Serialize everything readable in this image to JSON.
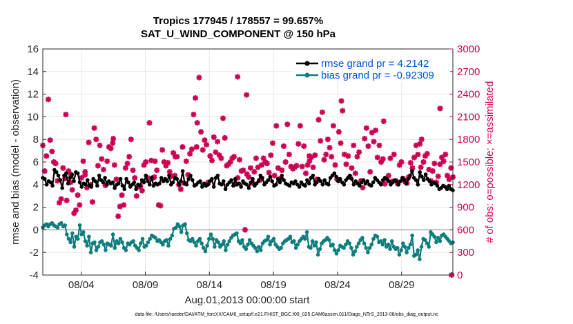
{
  "chart_data": {
    "type": "line",
    "title": "Tropics 177945 / 178557 = 99.657%",
    "subtitle": "SAT_U_WIND_COMPONENT @ 150 hPa",
    "xlabel": "Aug.01,2013 00:00:00 start",
    "ylabel": "rmse and bias (model - observation)",
    "y2label": "# of obs: o=possible; ×=assimilated",
    "footnote": "data file: /Users/raeder/DAI/ATM_forcXX/CAM6_setup/f.e21.FHIST_BGC.f09_025.CAM6assim.011/Diags_NTrS_2013-08/obs_diag_output.nc",
    "xlim": [
      1,
      33
    ],
    "ylim": [
      -4,
      16
    ],
    "y2lim": [
      0,
      3000
    ],
    "x_ticks": [
      {
        "x": 4,
        "label": "08/04"
      },
      {
        "x": 9,
        "label": "08/09"
      },
      {
        "x": 14,
        "label": "08/14"
      },
      {
        "x": 19,
        "label": "08/19"
      },
      {
        "x": 24,
        "label": "08/24"
      },
      {
        "x": 29,
        "label": "08/29"
      }
    ],
    "y_ticks": [
      -4,
      -2,
      0,
      2,
      4,
      6,
      8,
      10,
      12,
      14,
      16
    ],
    "y_tick_labels": [
      "-4",
      "-2",
      "0",
      "2",
      "4",
      "6",
      "8",
      "10",
      "12",
      "14",
      "16"
    ],
    "y2_ticks": [
      0,
      300,
      600,
      900,
      1200,
      1500,
      1800,
      2100,
      2400,
      2700,
      3000
    ],
    "y2_tick_labels": [
      "0",
      "300",
      "600",
      "900",
      "1200",
      "1500",
      "1800",
      "2100",
      "2400",
      "2700",
      "3000"
    ],
    "colors": {
      "rmse": "#000000",
      "bias": "#0d7d7d",
      "obs": "#cc0052",
      "legend_text": "#0055dd",
      "grid": "#e6e6e6",
      "zero_line": "#aaaaaa"
    },
    "series": [
      {
        "name": "rmse grand pr = 4.2142",
        "values": [
          4.6,
          4.5,
          4.0,
          4.3,
          4.2,
          3.9,
          5.3,
          5.1,
          4.8,
          4.4,
          3.7,
          4.8,
          5.0,
          4.1,
          4.6,
          4.9,
          4.3,
          5.1,
          5.0,
          4.2,
          3.8,
          4.1,
          4.0,
          4.4,
          3.9,
          3.8,
          4.5,
          4.3,
          3.9,
          4.8,
          4.4,
          4.2,
          4.6,
          4.0,
          4.3,
          4.1,
          4.2,
          3.7,
          4.0,
          4.1,
          4.5,
          3.9,
          3.6,
          4.5,
          4.2,
          3.8,
          4.0,
          4.2,
          3.6,
          4.0,
          3.9,
          4.4,
          4.2,
          4.8,
          4.3,
          4.0,
          4.6,
          3.9,
          4.1,
          4.0,
          4.1,
          4.6,
          4.3,
          4.5,
          4.3,
          4.8,
          4.0,
          4.2,
          4.6,
          4.5,
          4.0,
          4.3,
          5.2,
          4.1,
          4.0,
          4.5,
          4.8,
          4.4,
          3.9,
          4.0,
          4.2,
          4.3,
          3.8,
          4.1,
          3.9,
          4.0,
          4.3,
          4.5,
          3.8,
          4.6,
          4.8,
          4.1,
          4.0,
          4.3,
          3.6,
          4.0,
          4.2,
          4.4,
          3.9,
          4.5,
          4.0,
          4.1,
          3.8,
          4.3,
          4.1,
          4.0,
          3.7,
          4.2,
          4.5,
          3.9,
          4.1,
          4.3,
          4.8,
          4.6,
          4.0,
          4.2,
          4.4,
          4.7,
          4.3,
          3.9,
          4.0,
          4.5,
          4.2,
          4.8,
          4.4,
          4.1,
          4.0,
          3.9,
          4.2,
          4.1,
          4.3,
          4.0,
          3.8,
          4.2,
          4.0,
          3.9,
          4.4,
          4.1,
          4.6,
          4.8,
          4.0,
          4.2,
          4.5,
          4.3,
          4.0,
          4.4,
          4.1,
          4.0,
          4.6,
          4.8,
          5.0,
          4.7,
          4.3,
          4.5,
          4.2,
          4.0,
          4.4,
          4.6,
          4.8,
          4.5,
          4.0,
          4.3,
          4.1,
          3.9,
          4.2,
          4.4,
          4.1,
          4.3,
          4.0,
          3.9,
          4.2,
          4.6,
          4.4,
          4.2,
          4.0,
          4.4,
          4.6,
          4.5,
          4.3,
          4.0,
          4.2,
          4.4,
          4.3,
          4.0,
          4.3,
          4.6,
          4.4,
          4.1,
          4.5,
          4.8,
          5.2,
          4.6,
          4.4,
          4.0,
          5.1,
          4.7,
          4.4,
          4.9,
          4.5,
          4.3,
          4.0,
          4.2,
          4.1,
          3.9,
          3.6,
          3.7,
          3.9,
          3.8,
          3.6,
          3.9,
          3.6,
          3.5
        ]
      },
      {
        "name": "bias grand pr = -0.92309",
        "values": [
          0.2,
          0.4,
          0.5,
          0.3,
          0.5,
          0.6,
          0.4,
          0.3,
          0.2,
          0.5,
          0.6,
          0.3,
          0.4,
          -0.4,
          -0.8,
          -1.1,
          -0.3,
          -1.5,
          -0.6,
          -0.8,
          0.4,
          -0.4,
          -0.2,
          -1.0,
          -1.4,
          -0.6,
          -2.0,
          -1.2,
          -1.1,
          -1.8,
          -1.5,
          -1.1,
          -1.0,
          -1.3,
          -1.8,
          -1.2,
          -1.3,
          -1.4,
          -0.4,
          -1.6,
          -1.0,
          -1.2,
          -0.8,
          -1.1,
          -1.6,
          -1.8,
          -1.2,
          -1.3,
          -1.1,
          -1.0,
          -1.4,
          -1.6,
          -1.8,
          -1.2,
          -0.8,
          -1.5,
          -1.4,
          -1.1,
          -0.8,
          -0.5,
          -0.6,
          -0.7,
          -1.0,
          -0.9,
          -1.1,
          -1.3,
          -1.0,
          -0.9,
          -1.4,
          -0.8,
          -0.5,
          0.1,
          0.2,
          0.5,
          0.3,
          -0.2,
          0.4,
          0.5,
          -0.3,
          -0.9,
          -1.0,
          -0.8,
          -1.1,
          -1.4,
          -1.0,
          -0.8,
          -1.2,
          -1.6,
          -1.9,
          -1.4,
          -0.8,
          -0.4,
          -0.8,
          -1.5,
          -0.9,
          -1.1,
          -1.5,
          -1.3,
          -1.0,
          -1.8,
          -1.3,
          -1.0,
          -0.7,
          -0.5,
          -0.4,
          -0.3,
          -1.0,
          -1.2,
          -0.9,
          -1.5,
          -1.7,
          -1.3,
          -0.9,
          -1.2,
          -1.4,
          -1.6,
          -1.9,
          -1.5,
          -1.8,
          -1.2,
          -1.0,
          -0.9,
          -0.6,
          -1.3,
          -1.0,
          -0.8,
          -1.3,
          -1.5,
          -1.7,
          -1.6,
          -1.2,
          -1.0,
          -0.9,
          -0.8,
          -0.6,
          -1.1,
          -1.0,
          -1.6,
          -1.3,
          -1.0,
          -0.8,
          -0.6,
          -0.8,
          -0.2,
          -1.5,
          -1.6,
          -1.0,
          -1.4,
          -1.1,
          -2.2,
          -1.7,
          -1.2,
          -1.0,
          -0.9,
          -0.7,
          -0.9,
          -1.4,
          -1.3,
          -1.8,
          -2.1,
          -1.8,
          -1.4,
          -1.5,
          -1.6,
          -1.3,
          -1.0,
          -1.2,
          -1.6,
          -2.2,
          -1.9,
          -1.5,
          -1.2,
          -0.9,
          -0.7,
          -1.2,
          -1.6,
          -2.0,
          -1.6,
          -1.3,
          -0.8,
          -0.5,
          -0.6,
          -1.1,
          -1.0,
          -1.3,
          -0.9,
          -1.5,
          -1.3,
          -1.7,
          -1.0,
          -1.5,
          -1.7,
          -1.6,
          -2.2,
          -1.8,
          -1.2,
          -1.5,
          -2.0,
          -1.6,
          -1.3,
          -0.5,
          -2.3,
          -2.2,
          -1.8,
          -2.6,
          -1.5,
          -0.8,
          -0.9,
          -1.2,
          -1.5,
          -0.2,
          -0.4,
          -0.6,
          -1.1,
          -0.7,
          -1.0,
          -0.5,
          -0.4,
          -0.6,
          -0.8,
          -1.0,
          -1.2,
          -1.1
        ]
      }
    ],
    "obs_series": {
      "name": "# of obs (assimilated)",
      "axis": "right",
      "values": [
        1720,
        1380,
        1580,
        2330,
        1790,
        1640,
        1500,
        1480,
        1250,
        960,
        1010,
        1420,
        1280,
        990,
        1380,
        1230,
        1130,
        820,
        860,
        1060,
        930,
        1290,
        1510,
        1330,
        1160,
        1760,
        1200,
        970,
        1950,
        1800,
        1450,
        1720,
        1540,
        1400,
        1190,
        1510,
        1700,
        1680,
        1750,
        1460,
        1270,
        780,
        910,
        1060,
        930,
        1420,
        1480,
        1570,
        1800,
        1390,
        1290,
        1050,
        1170,
        1180,
        1120,
        1460,
        1500,
        1290,
        2020,
        1520,
        1290,
        1510,
        1390,
        930,
        920,
        1660,
        1500,
        1450,
        1490,
        1370,
        1310,
        1620,
        1570,
        1570,
        1200,
        1140,
        1700,
        1220,
        1510,
        1330,
        1610,
        1670,
        2130,
        2350,
        2020,
        2620,
        1900,
        1660,
        1790,
        1730,
        1230,
        1580,
        1520,
        1830,
        1630,
        1770,
        1590,
        1550,
        2080,
        1820,
        1450,
        1470,
        1500,
        1550,
        1570,
        1210,
        1290,
        1530,
        1380,
        1390,
        600,
        1340,
        1300,
        1420,
        1220,
        1370,
        1550,
        1430,
        1260,
        1460,
        1550,
        1500,
        1480,
        1360,
        1590,
        1750,
        1320,
        1980,
        1420,
        1280,
        1390,
        1710,
        1500,
        2000,
        1600,
        1440,
        1410,
        1430,
        1450,
        1740,
        1980,
        1440,
        1710,
        1350,
        1460,
        1510,
        1560,
        1430,
        1590,
        1270,
        2060,
        1780,
        2160,
        1530,
        1600,
        1800,
        1690,
        1570,
        1980,
        1460,
        1270,
        1900,
        1750,
        2180,
        1600,
        1470,
        1580,
        1300,
        1420,
        1720,
        1350,
        1570,
        1630,
        1250,
        1160,
        1810,
        1950,
        1710,
        1370,
        1890,
        1770,
        1920,
        1560,
        1720,
        1500,
        1540,
        1210,
        1280,
        1320,
        1550,
        1240,
        1600,
        1250,
        1210,
        1460,
        1500,
        1280,
        1240,
        1220,
        1300,
        1490,
        1420,
        1560,
        1720,
        1600,
        1740,
        1800,
        1500,
        1580,
        1610,
        1400,
        1250,
        1380,
        1480,
        1230,
        1310,
        1470,
        1560,
        1510,
        1600,
        1320,
        1270,
        1420,
        1300
      ]
    },
    "obs_outliers": [
      {
        "x": 2.8,
        "value": 2130
      },
      {
        "x": 3.2,
        "value": 1330
      },
      {
        "x": 4.3,
        "value": 1370
      },
      {
        "x": 6.5,
        "value": 1810
      },
      {
        "x": 9.7,
        "value": 1300
      },
      {
        "x": 11.3,
        "value": 1320
      },
      {
        "x": 13.0,
        "value": 1700
      },
      {
        "x": 16.2,
        "value": 2630
      },
      {
        "x": 16.9,
        "value": 2390
      },
      {
        "x": 21.8,
        "value": 1580
      },
      {
        "x": 24.3,
        "value": 2310
      },
      {
        "x": 27.6,
        "value": 2040
      },
      {
        "x": 30.5,
        "value": 1430
      },
      {
        "x": 32.0,
        "value": 2210
      },
      {
        "x": 32.9,
        "value": 0
      }
    ]
  }
}
